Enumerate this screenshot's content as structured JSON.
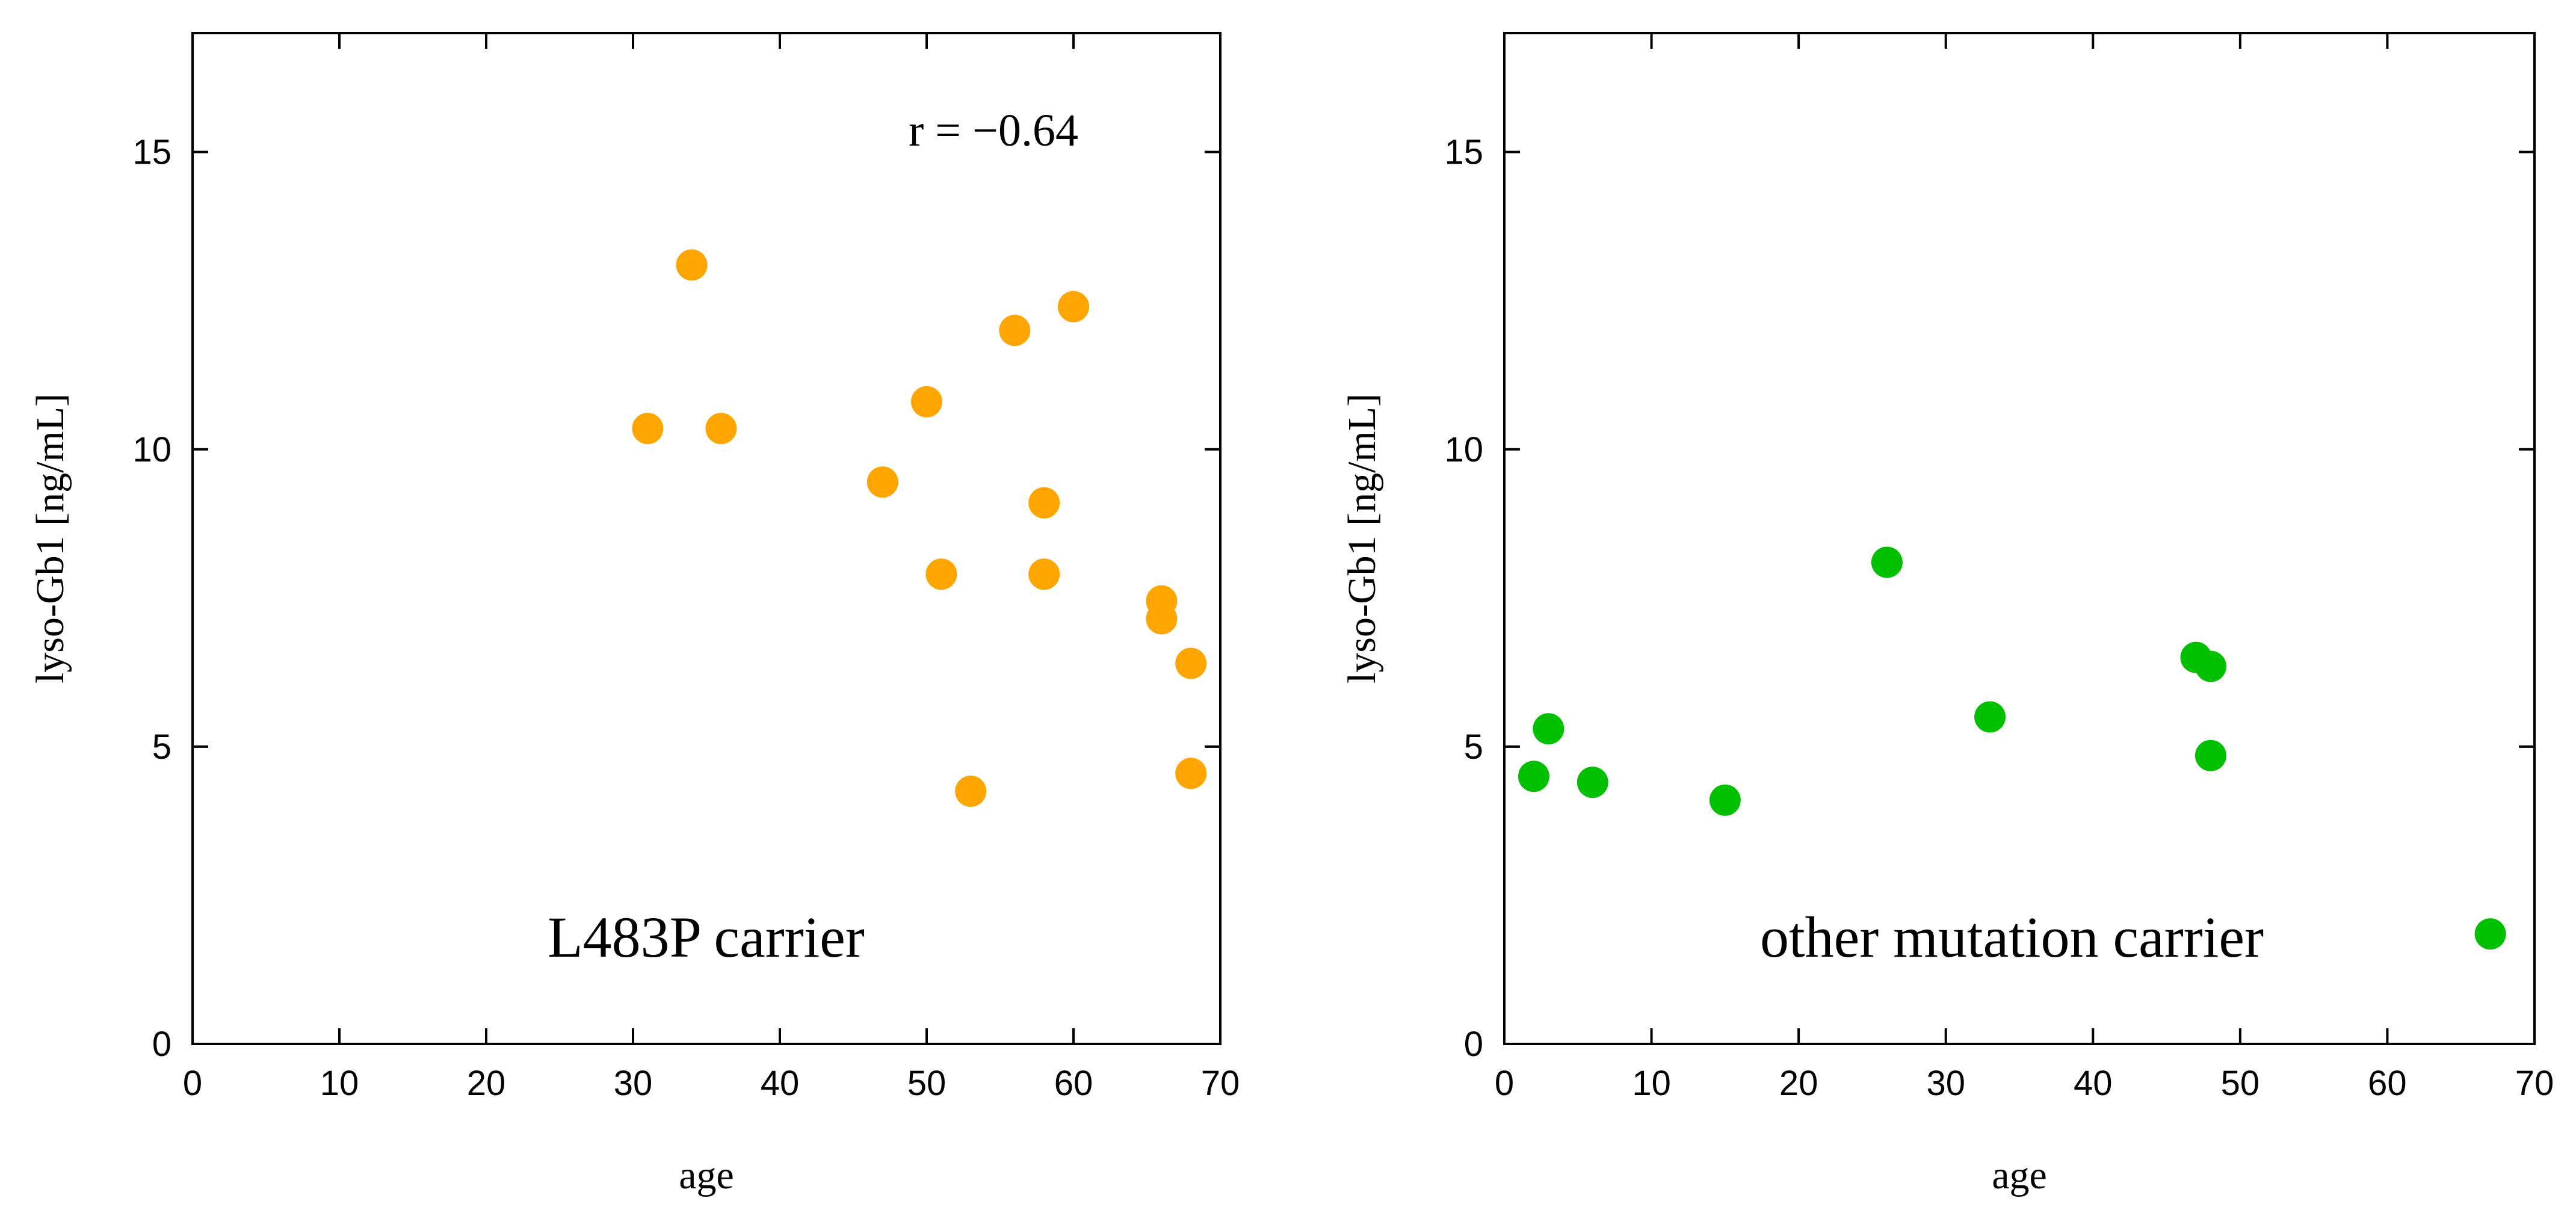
{
  "chart_data": [
    {
      "type": "scatter",
      "xlabel": "age",
      "ylabel": "lyso-Gb1 [ng/mL]",
      "xlim": [
        0,
        70
      ],
      "ylim": [
        0,
        17
      ],
      "xticks": [
        "0",
        "10",
        "20",
        "30",
        "40",
        "50",
        "60",
        "70"
      ],
      "yticks": [
        "0",
        "5",
        "10",
        "15"
      ],
      "annotation": "r = −0.64",
      "panel_label": "L483P carrier",
      "grid": false,
      "color": "#FFA500",
      "points": [
        {
          "x": 31,
          "y": 10.35
        },
        {
          "x": 34,
          "y": 13.1
        },
        {
          "x": 36,
          "y": 10.35
        },
        {
          "x": 47,
          "y": 9.45
        },
        {
          "x": 50,
          "y": 10.8
        },
        {
          "x": 51,
          "y": 7.9
        },
        {
          "x": 53,
          "y": 4.25
        },
        {
          "x": 56,
          "y": 12.0
        },
        {
          "x": 58,
          "y": 9.1
        },
        {
          "x": 58,
          "y": 7.9
        },
        {
          "x": 60,
          "y": 12.4
        },
        {
          "x": 66,
          "y": 7.45
        },
        {
          "x": 66,
          "y": 7.15
        },
        {
          "x": 68,
          "y": 6.4
        },
        {
          "x": 68,
          "y": 4.55
        }
      ]
    },
    {
      "type": "scatter",
      "xlabel": "age",
      "ylabel": "lyso-Gb1 [ng/mL]",
      "xlim": [
        0,
        70
      ],
      "ylim": [
        0,
        17
      ],
      "xticks": [
        "0",
        "10",
        "20",
        "30",
        "40",
        "50",
        "60",
        "70"
      ],
      "yticks": [
        "0",
        "5",
        "10",
        "15"
      ],
      "panel_label": "other mutation carrier",
      "grid": false,
      "color": "#00C000",
      "points": [
        {
          "x": 2,
          "y": 4.5
        },
        {
          "x": 3,
          "y": 5.3
        },
        {
          "x": 6,
          "y": 4.4
        },
        {
          "x": 15,
          "y": 4.1
        },
        {
          "x": 26,
          "y": 8.1
        },
        {
          "x": 33,
          "y": 5.5
        },
        {
          "x": 47,
          "y": 6.5
        },
        {
          "x": 48,
          "y": 6.35
        },
        {
          "x": 48,
          "y": 4.85
        },
        {
          "x": 67,
          "y": 1.85
        }
      ]
    }
  ]
}
